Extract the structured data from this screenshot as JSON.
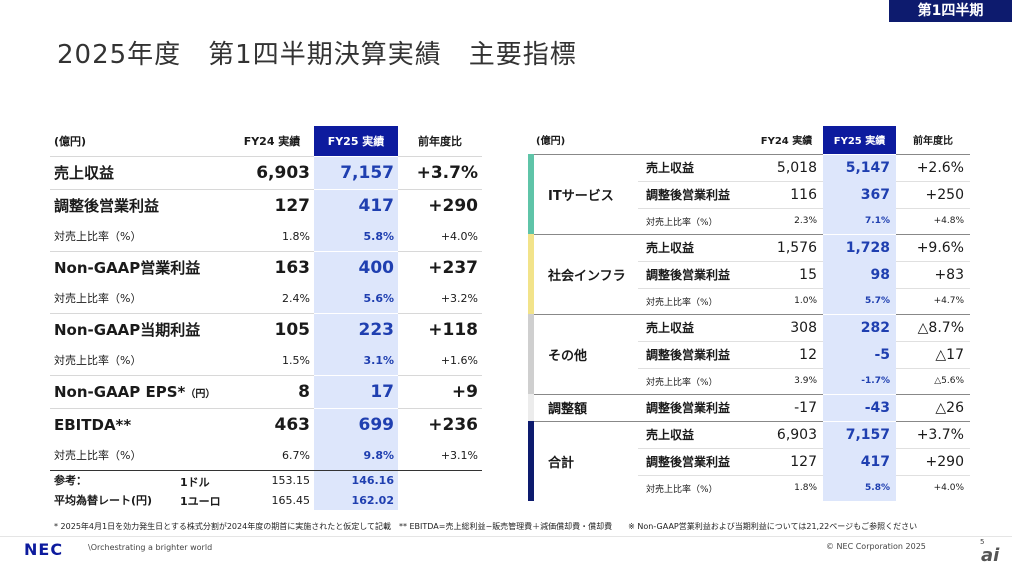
{
  "badge": "第1四半期",
  "title": "2025年度　第1四半期決算実績　主要指標",
  "left_table": {
    "unit": "(億円)",
    "headers": [
      "FY24 実績",
      "FY25 実績",
      "前年度比"
    ],
    "rows": [
      {
        "label": "売上収益",
        "fy24": "6,903",
        "fy25": "7,157",
        "yoy": "+3.7%"
      },
      {
        "label": "調整後営業利益",
        "fy24": "127",
        "fy25": "417",
        "yoy": "+290"
      },
      {
        "label": "対売上比率（%）",
        "fy24": "1.8%",
        "fy25": "5.8%",
        "yoy": "+4.0%"
      },
      {
        "label": "Non-GAAP営業利益",
        "fy24": "163",
        "fy25": "400",
        "yoy": "+237"
      },
      {
        "label": "対売上比率（%）",
        "fy24": "2.4%",
        "fy25": "5.6%",
        "yoy": "+3.2%"
      },
      {
        "label": "Non-GAAP当期利益",
        "fy24": "105",
        "fy25": "223",
        "yoy": "+118"
      },
      {
        "label": "対売上比率（%）",
        "fy24": "1.5%",
        "fy25": "3.1%",
        "yoy": "+1.6%"
      },
      {
        "label": "Non-GAAP EPS*",
        "label_suffix": "（円）",
        "fy24": "8",
        "fy25": "17",
        "yoy": "+9"
      },
      {
        "label": "EBITDA**",
        "fy24": "463",
        "fy25": "699",
        "yoy": "+236"
      },
      {
        "label": "対売上比率（%）",
        "fy24": "6.7%",
        "fy25": "9.8%",
        "yoy": "+3.1%"
      }
    ],
    "reference": [
      {
        "label": "参考：",
        "sublabel": "1ドル",
        "fy24": "153.15",
        "fy25": "146.16"
      },
      {
        "label": "平均為替レート(円)",
        "sublabel": "1ユーロ",
        "fy24": "165.45",
        "fy25": "162.02"
      }
    ]
  },
  "right_table": {
    "unit": "(億円)",
    "headers": [
      "FY24 実績",
      "FY25 実績",
      "前年度比"
    ],
    "segments": [
      {
        "name": "ITサービス",
        "color": "#5fc4a8",
        "rows": [
          {
            "metric": "売上収益",
            "fy24": "5,018",
            "fy25": "5,147",
            "yoy": "+2.6%"
          },
          {
            "metric": "調整後営業利益",
            "fy24": "116",
            "fy25": "367",
            "yoy": "+250"
          },
          {
            "metric": "対売上比率（%）",
            "fy24": "2.3%",
            "fy25": "7.1%",
            "yoy": "+4.8%"
          }
        ]
      },
      {
        "name": "社会インフラ",
        "color": "#f2e38a",
        "rows": [
          {
            "metric": "売上収益",
            "fy24": "1,576",
            "fy25": "1,728",
            "yoy": "+9.6%"
          },
          {
            "metric": "調整後営業利益",
            "fy24": "15",
            "fy25": "98",
            "yoy": "+83"
          },
          {
            "metric": "対売上比率（%）",
            "fy24": "1.0%",
            "fy25": "5.7%",
            "yoy": "+4.7%"
          }
        ]
      },
      {
        "name": "その他",
        "color": "#cfcfcf",
        "rows": [
          {
            "metric": "売上収益",
            "fy24": "308",
            "fy25": "282",
            "yoy": "△8.7%"
          },
          {
            "metric": "調整後営業利益",
            "fy24": "12",
            "fy25": "-5",
            "yoy": "△17"
          },
          {
            "metric": "対売上比率（%）",
            "fy24": "3.9%",
            "fy25": "-1.7%",
            "yoy": "△5.6%"
          }
        ]
      },
      {
        "name": "調整額",
        "color": "#ececec",
        "rows": [
          {
            "metric": "調整後営業利益",
            "fy24": "-17",
            "fy25": "-43",
            "yoy": "△26"
          }
        ]
      },
      {
        "name": "合計",
        "color": "#0d1b6e",
        "rows": [
          {
            "metric": "売上収益",
            "fy24": "6,903",
            "fy25": "7,157",
            "yoy": "+3.7%"
          },
          {
            "metric": "調整後営業利益",
            "fy24": "127",
            "fy25": "417",
            "yoy": "+290"
          },
          {
            "metric": "対売上比率（%）",
            "fy24": "1.8%",
            "fy25": "5.8%",
            "yoy": "+4.0%"
          }
        ]
      }
    ]
  },
  "footnote": "* 2025年4月1日を効力発生日とする株式分割が2024年度の期首に実施されたと仮定して記載　** EBITDA=売上総利益−販売管理費＋減価償却費・償却費　　※ Non-GAAP営業利益および当期利益については21,22ページもご参照ください",
  "footer": {
    "logo": "NEC",
    "tagline": "\\Orchestrating a brighter world",
    "copyright": "© NEC Corporation 2025",
    "page": "5",
    "ai_logo": "ai"
  }
}
